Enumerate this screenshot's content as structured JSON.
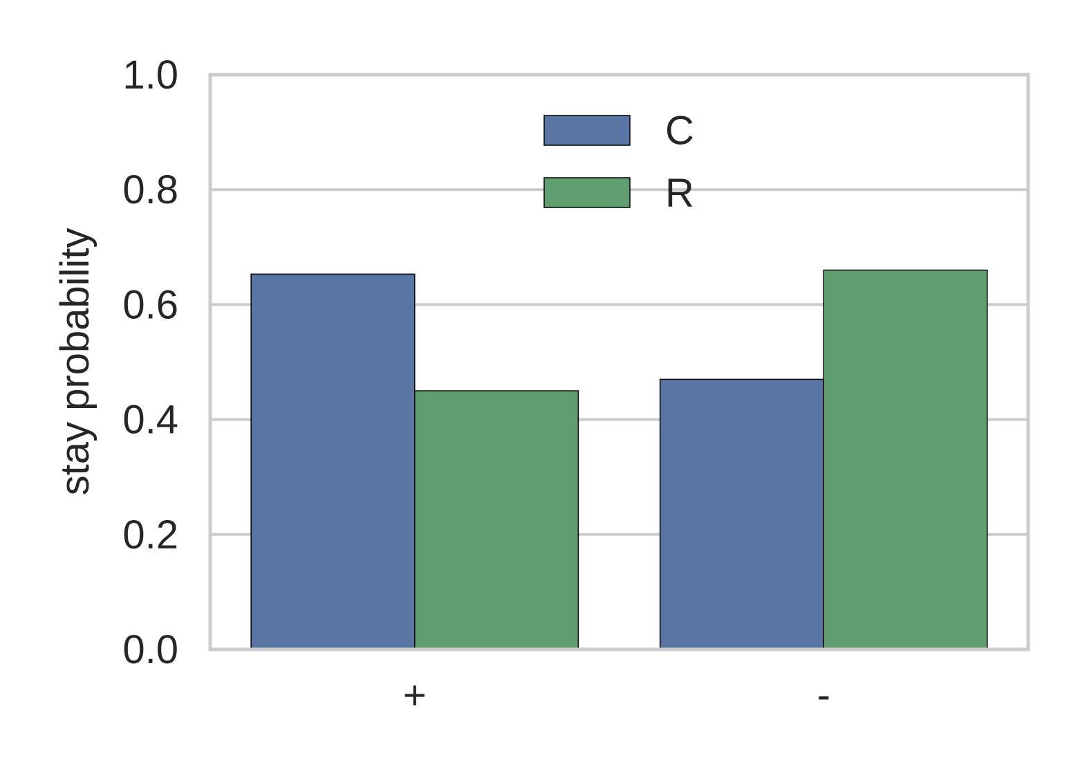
{
  "chart_data": {
    "type": "bar",
    "title": "",
    "xlabel": "",
    "ylabel": "stay probability",
    "categories": [
      "+",
      "-"
    ],
    "series": [
      {
        "name": "C",
        "color": "#5975a4",
        "values": [
          0.653,
          0.47
        ]
      },
      {
        "name": "R",
        "color": "#5f9e6e",
        "values": [
          0.45,
          0.66
        ]
      }
    ],
    "ylim": [
      0,
      1.0
    ],
    "yticks": [
      0.0,
      0.2,
      0.4,
      0.6,
      0.8,
      1.0
    ],
    "ytick_labels": [
      "0.0",
      "0.2",
      "0.4",
      "0.6",
      "0.8",
      "1.0"
    ],
    "grid": true,
    "grid_axis": "y",
    "legend_position": "upper center",
    "style": {
      "grid_color": "#cccccc",
      "frame_color": "#cccccc",
      "bar_edge_color": "#000000",
      "text_color": "#262626"
    }
  }
}
